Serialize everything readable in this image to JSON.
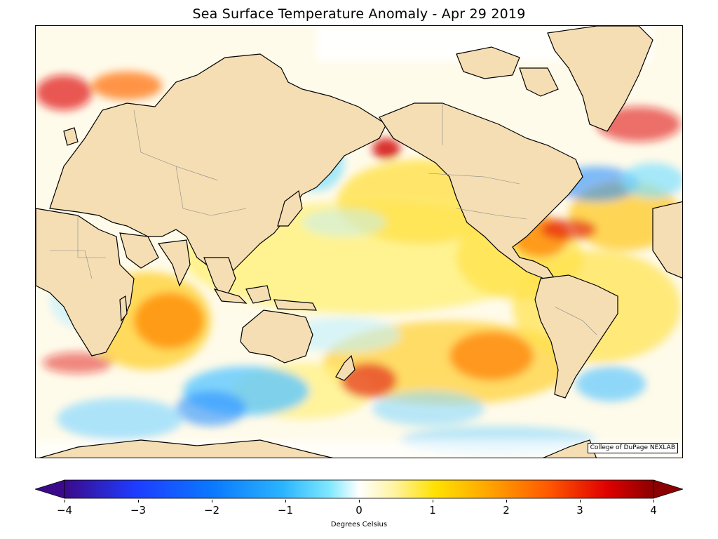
{
  "title": "Sea Surface Temperature Anomaly - Apr 29 2019",
  "credit": "College of DuPage NEXLAB",
  "colorbar": {
    "label": "Degrees Celsius",
    "min": -4,
    "max": 4,
    "ticks": [
      "−4",
      "−3",
      "−2",
      "−1",
      "0",
      "1",
      "2",
      "3",
      "4"
    ],
    "tick_values": [
      -4,
      -3,
      -2,
      -1,
      0,
      1,
      2,
      3,
      4
    ],
    "colors": [
      "#3b0a8a",
      "#1e3cff",
      "#0a78ff",
      "#2ab4ff",
      "#7fe8ff",
      "#ffffff",
      "#fff3a0",
      "#ffe100",
      "#ffa500",
      "#ff5a00",
      "#e00000",
      "#8b0000"
    ]
  },
  "map": {
    "land_color": "#f5deb3",
    "ocean_base": "#fffbea",
    "coastline_color": "#000000"
  }
}
